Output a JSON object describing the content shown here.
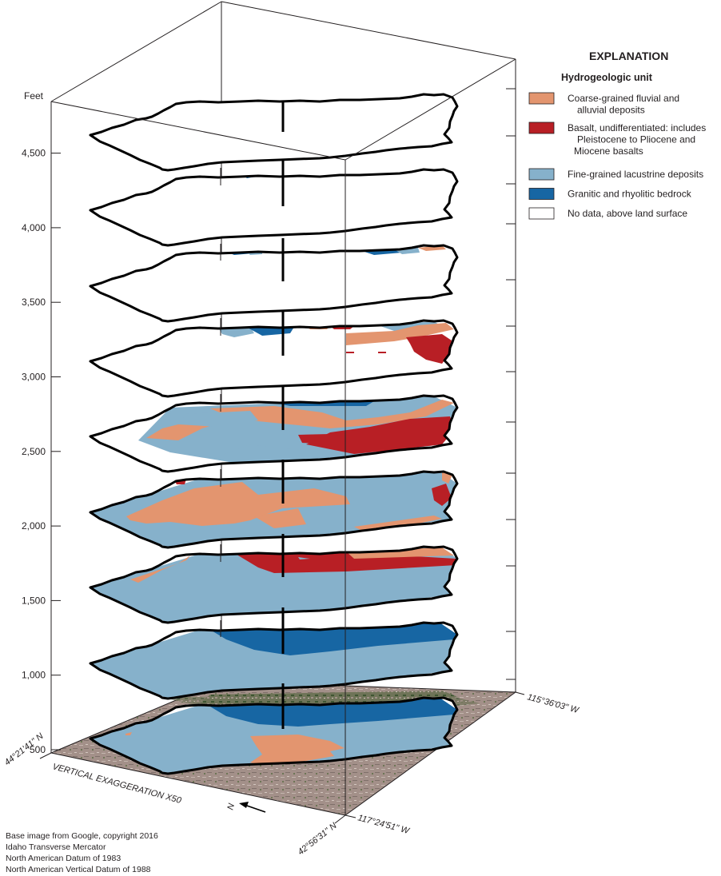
{
  "figure": {
    "vertical_axis_unit": "Feet",
    "elevation_ticks": [
      "4,500",
      "4,000",
      "3,500",
      "3,000",
      "2,500",
      "2,000",
      "1,500",
      "1,000",
      "500"
    ],
    "vertical_exaggeration": "VERTICAL EXAGGERATION X50",
    "north_label": "N",
    "corner_coords": {
      "left": "44°21'41\" N",
      "front_lat": "42°56'31\" N",
      "front_lon": "117°24'51\" W",
      "right": "115°36'03\" W"
    },
    "slices": [
      {
        "elevation_ft": 4750,
        "content": "no-data"
      },
      {
        "elevation_ft": 4250,
        "content": "no-data-mostly"
      },
      {
        "elevation_ft": 3750,
        "content": "no-data-mostly"
      },
      {
        "elevation_ft": 3250,
        "content": "mixed"
      },
      {
        "elevation_ft": 2750,
        "content": "mixed"
      },
      {
        "elevation_ft": 2250,
        "content": "fine-coarse"
      },
      {
        "elevation_ft": 1750,
        "content": "fine-basalt"
      },
      {
        "elevation_ft": 1250,
        "content": "fine-bedrock"
      },
      {
        "elevation_ft": 750,
        "content": "fine-bedrock-coarse"
      }
    ]
  },
  "legend": {
    "title": "EXPLANATION",
    "subtitle": "Hydrogeologic unit",
    "items": [
      {
        "lines": [
          "Coarse-grained fluvial and",
          "alluvial deposits"
        ],
        "color": "#e3956f"
      },
      {
        "lines": [
          "Basalt, undifferentiated: includes",
          "Pleistocene to Pliocene and",
          "Miocene basalts"
        ],
        "color": "#b81f25"
      },
      {
        "lines": [
          "Fine-grained lacustrine deposits"
        ],
        "color": "#86b1cb"
      },
      {
        "lines": [
          "Granitic and rhyolitic bedrock"
        ],
        "color": "#1766a3"
      },
      {
        "lines": [
          "No data, above land surface"
        ],
        "color": "#ffffff"
      }
    ]
  },
  "credits": [
    "Base image from Google, copyright 2016",
    "Idaho Transverse Mercator",
    "North American Datum of 1983",
    "North American Vertical Datum of 1988"
  ],
  "colors": {
    "coarse": "#e3956f",
    "basalt": "#b81f25",
    "fine": "#86b1cb",
    "bedrock": "#1766a3",
    "terrain": "#9d8b84",
    "terrain_dark": "#5d6a4a"
  }
}
